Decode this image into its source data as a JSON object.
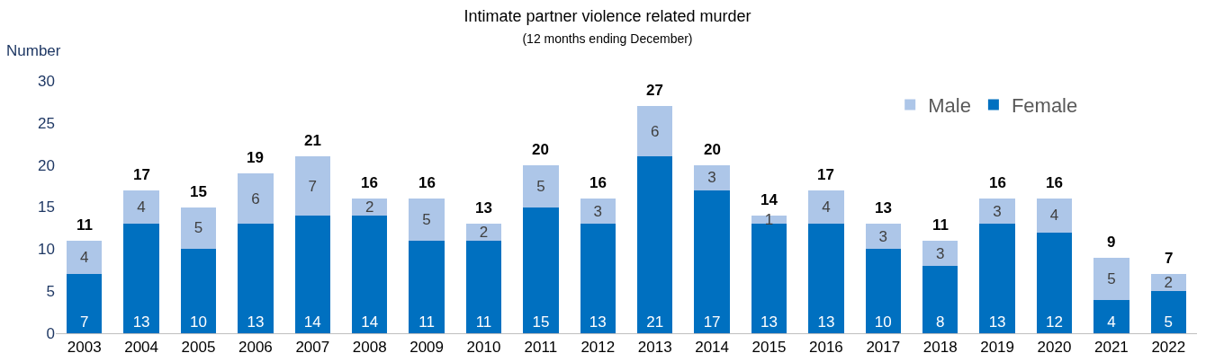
{
  "chart_data": {
    "type": "bar",
    "title": "Intimate partner violence related murder",
    "subtitle": "(12 months ending December)",
    "ylabel": "Number",
    "categories": [
      "2003",
      "2004",
      "2005",
      "2006",
      "2007",
      "2008",
      "2009",
      "2010",
      "2011",
      "2012",
      "2013",
      "2014",
      "2015",
      "2016",
      "2017",
      "2018",
      "2019",
      "2020",
      "2021",
      "2022"
    ],
    "series": [
      {
        "name": "Female",
        "color": "#0070c0",
        "values": [
          7,
          13,
          10,
          13,
          14,
          14,
          11,
          11,
          15,
          13,
          21,
          17,
          13,
          13,
          10,
          8,
          13,
          12,
          4,
          5
        ]
      },
      {
        "name": "Male",
        "color": "#adc6e8",
        "values": [
          4,
          4,
          5,
          6,
          7,
          2,
          5,
          2,
          5,
          3,
          6,
          3,
          1,
          4,
          3,
          3,
          3,
          4,
          5,
          2
        ]
      }
    ],
    "stacked": true,
    "data_labels": true,
    "totals": [
      "11",
      "17",
      "15",
      "19",
      "21",
      "16",
      "16",
      "13",
      "20",
      "16",
      "27",
      "20",
      "14",
      "17",
      "13",
      "11",
      "16",
      "16",
      "9",
      "7"
    ],
    "ylim": [
      0,
      30
    ],
    "yticks": [
      0,
      5,
      10,
      15,
      20,
      25,
      30
    ],
    "grid": false,
    "legend": "top right"
  }
}
